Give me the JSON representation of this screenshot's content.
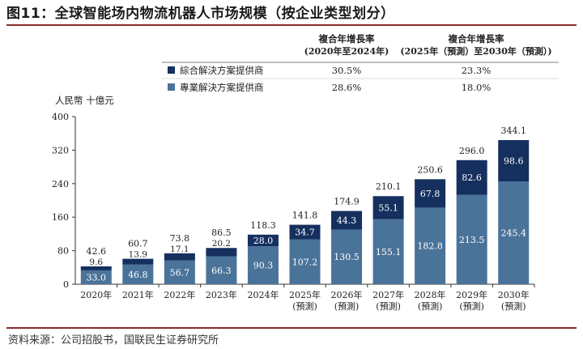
{
  "figure": {
    "title": "图11：全球智能场内物流机器人市场规模（按企业类型划分）",
    "source": "资料来源：公司招股书，国联民生证券研究所"
  },
  "legend_table": {
    "col1_header_line1": "複合年增長率",
    "col1_header_line2": "(2020年至2024年)",
    "col2_header_line1": "複合年增長率",
    "col2_header_line2": "(2025年（預測）至2030年（預測）)",
    "rows": [
      {
        "label": "綜合解決方案提供商",
        "color": "#15305e",
        "cagr_2020_2024": "30.5%",
        "cagr_2025_2030": "23.3%"
      },
      {
        "label": "專業解決方案提供商",
        "color": "#4a7399",
        "cagr_2020_2024": "28.6%",
        "cagr_2025_2030": "18.0%"
      }
    ]
  },
  "chart_data": {
    "type": "bar",
    "stacked": true,
    "ylabel": "人民幣 十億元",
    "ylim": [
      0,
      400
    ],
    "yticks": [
      0,
      80,
      160,
      240,
      320,
      400
    ],
    "categories": [
      "2020年",
      "2021年",
      "2022年",
      "2023年",
      "2024年",
      "2025年",
      "2026年",
      "2027年",
      "2028年",
      "2029年",
      "2030年"
    ],
    "category_sublabels": [
      "",
      "",
      "",
      "",
      "",
      "(預測)",
      "(預測)",
      "(預測)",
      "(預測)",
      "(預測)",
      "(預測)"
    ],
    "series": [
      {
        "name": "專業解決方案提供商",
        "color": "#4a7399",
        "values": [
          33.0,
          46.8,
          56.7,
          66.3,
          90.3,
          107.2,
          130.5,
          155.1,
          182.8,
          213.5,
          245.4
        ]
      },
      {
        "name": "綜合解決方案提供商",
        "color": "#15305e",
        "values": [
          9.6,
          13.9,
          17.1,
          20.2,
          28.0,
          34.7,
          44.3,
          55.1,
          67.8,
          82.6,
          98.6
        ]
      }
    ],
    "totals": [
      42.6,
      60.7,
      73.8,
      86.5,
      118.3,
      141.8,
      174.9,
      210.1,
      250.6,
      296.0,
      344.1
    ]
  }
}
